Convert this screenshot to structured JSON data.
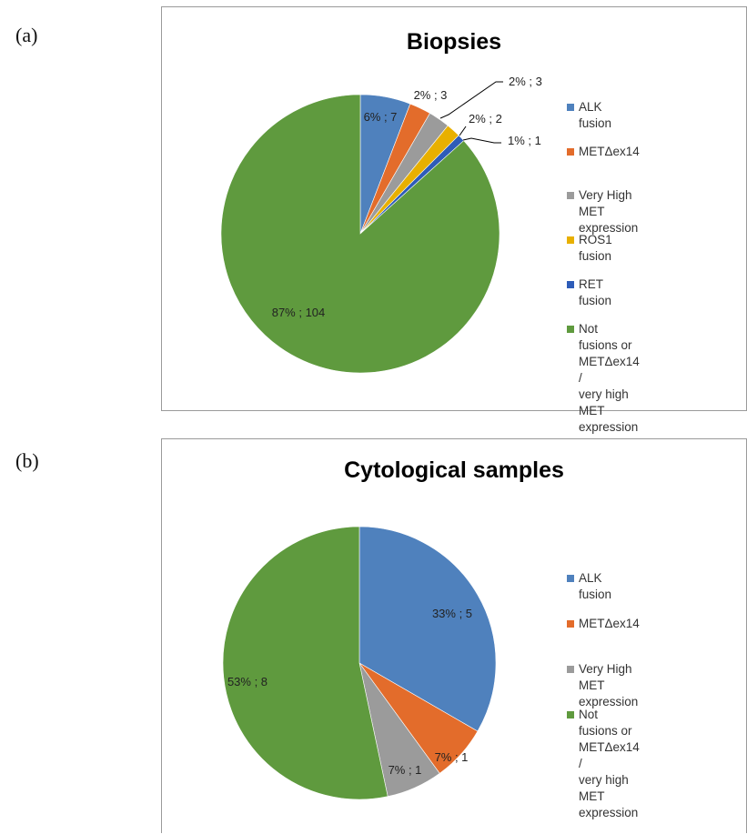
{
  "panels": [
    {
      "letter": "(a)",
      "chart_data": {
        "type": "pie",
        "title": "Biopsies",
        "categories": [
          "ALK fusion",
          "METΔex14",
          "Very High MET expression",
          "ROS1 fusion",
          "RET fusion",
          "Not fusions or METΔex14  /\nvery high MET expression"
        ],
        "values": [
          7,
          3,
          3,
          2,
          1,
          104
        ],
        "data_labels": [
          "6% ; 7",
          "2% ; 3",
          "2% ; 3",
          "2% ; 2",
          "1% ; 1",
          "87% ; 104"
        ],
        "colors": [
          "#4f81bd",
          "#e36c2b",
          "#9b9b9b",
          "#e8b000",
          "#2e5cb8",
          "#5f9a3e"
        ],
        "legend_position": "right",
        "start_angle_deg": 0,
        "direction": "clockwise"
      }
    },
    {
      "letter": "(b)",
      "chart_data": {
        "type": "pie",
        "title": "Cytological samples",
        "categories": [
          "ALK fusion",
          "METΔex14",
          "Very High MET expression",
          "Not fusions or METΔex14  /\nvery high MET expression"
        ],
        "values": [
          5,
          1,
          1,
          8
        ],
        "data_labels": [
          "33% ; 5",
          "7% ; 1",
          "7% ; 1",
          "53% ; 8"
        ],
        "colors": [
          "#4f81bd",
          "#e36c2b",
          "#9b9b9b",
          "#5f9a3e"
        ],
        "legend_position": "right",
        "start_angle_deg": 0,
        "direction": "clockwise"
      }
    }
  ]
}
